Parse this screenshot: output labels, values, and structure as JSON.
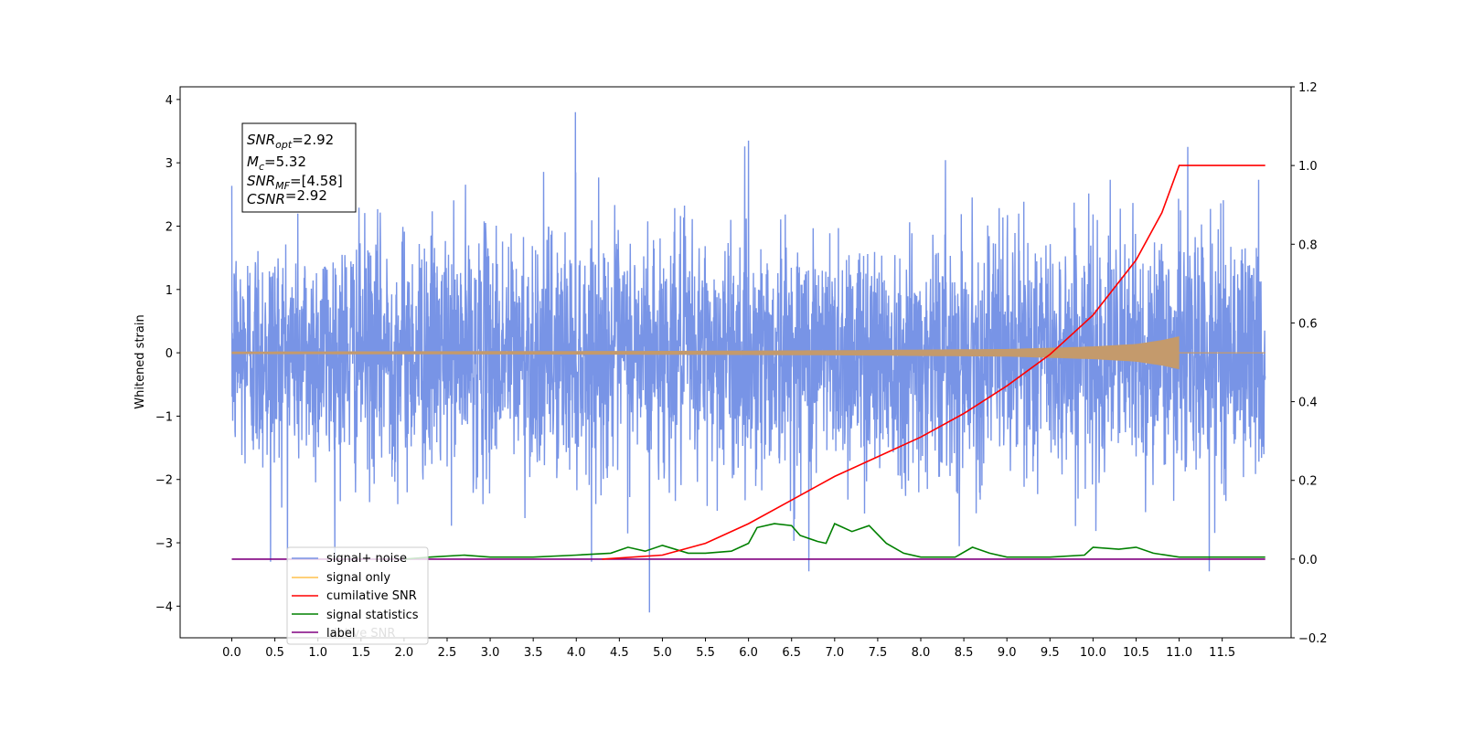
{
  "chart_data": {
    "type": "line",
    "title": "",
    "xlabel": "",
    "ylabel": "Whitened strain",
    "y2label": "",
    "xlim": [
      -0.6,
      12.3
    ],
    "ylim": [
      -4.5,
      4.2
    ],
    "y2lim": [
      -0.2,
      1.2
    ],
    "x_ticks": [
      "0.0",
      "0.5",
      "1.0",
      "1.5",
      "2.0",
      "2.5",
      "3.0",
      "3.5",
      "4.0",
      "4.5",
      "5.0",
      "5.5",
      "6.0",
      "6.5",
      "7.0",
      "7.5",
      "8.0",
      "8.5",
      "9.0",
      "9.5",
      "10.0",
      "10.5",
      "11.0",
      "11.5"
    ],
    "y_ticks": [
      4,
      3,
      2,
      1,
      0,
      -1,
      -2,
      -3,
      -4
    ],
    "y2_ticks": [
      "1.2",
      "1.0",
      "0.8",
      "0.6",
      "0.4",
      "0.2",
      "0.0",
      "−0.2"
    ],
    "grid": false,
    "legend_position": "lower-left",
    "annotation": {
      "lines": [
        {
          "symbol": "SNR",
          "sub": "opt",
          "value": "=2.92"
        },
        {
          "symbol": "M",
          "sub": "c",
          "value": "=5.32"
        },
        {
          "symbol": "SNR",
          "sub": "MF",
          "value": "=[4.58]"
        },
        {
          "symbol": "CSNR",
          "sub": "",
          "value": "=2.92"
        }
      ]
    },
    "series": [
      {
        "name": "signal+ noise",
        "color": "#7894e6",
        "axis": "left",
        "x_range": [
          0,
          12
        ],
        "amplitude_typical": 1.4,
        "peak_max": 3.8,
        "peak_min": -4.1
      },
      {
        "name": "signal only",
        "color": "#ffc04d",
        "axis": "left",
        "x_range": [
          0,
          12
        ],
        "envelope": {
          "x": [
            0,
            5,
            7,
            8,
            9,
            9.5,
            10,
            10.5,
            10.8,
            11.0
          ],
          "amplitude": [
            0.02,
            0.03,
            0.04,
            0.05,
            0.06,
            0.08,
            0.1,
            0.14,
            0.2,
            0.26
          ]
        }
      },
      {
        "name": "cumilative SNR",
        "color": "#ff0000",
        "axis": "right",
        "x": [
          4.3,
          5,
          5.5,
          6,
          6.5,
          7,
          7.5,
          8,
          8.5,
          9,
          9.5,
          10,
          10.5,
          10.8,
          11.0,
          12.0
        ],
        "y": [
          0.0,
          0.01,
          0.04,
          0.09,
          0.15,
          0.21,
          0.26,
          0.31,
          0.37,
          0.44,
          0.52,
          0.62,
          0.76,
          0.88,
          1.0,
          1.0
        ]
      },
      {
        "name": "signal statistics",
        "color": "#008000",
        "axis": "right",
        "x": [
          2.0,
          2.3,
          2.7,
          3.0,
          3.5,
          4.0,
          4.4,
          4.6,
          4.8,
          5.0,
          5.3,
          5.5,
          5.8,
          6.0,
          6.1,
          6.3,
          6.5,
          6.6,
          6.8,
          6.9,
          7.0,
          7.2,
          7.4,
          7.6,
          7.8,
          8.0,
          8.4,
          8.6,
          8.8,
          9.0,
          9.5,
          9.9,
          10.0,
          10.3,
          10.5,
          10.7,
          11.0,
          11.5,
          12.0
        ],
        "y": [
          0.0,
          0.005,
          0.01,
          0.005,
          0.005,
          0.01,
          0.015,
          0.03,
          0.02,
          0.035,
          0.015,
          0.015,
          0.02,
          0.04,
          0.08,
          0.09,
          0.085,
          0.06,
          0.045,
          0.04,
          0.09,
          0.07,
          0.085,
          0.04,
          0.015,
          0.005,
          0.005,
          0.03,
          0.015,
          0.005,
          0.005,
          0.01,
          0.03,
          0.025,
          0.03,
          0.015,
          0.005,
          0.005,
          0.005
        ]
      },
      {
        "name": "label",
        "color": "#800080",
        "axis": "right",
        "x": [
          0,
          12
        ],
        "y": [
          0.0,
          0.0
        ]
      }
    ]
  },
  "legend_ghost_text": "ulative SNR"
}
